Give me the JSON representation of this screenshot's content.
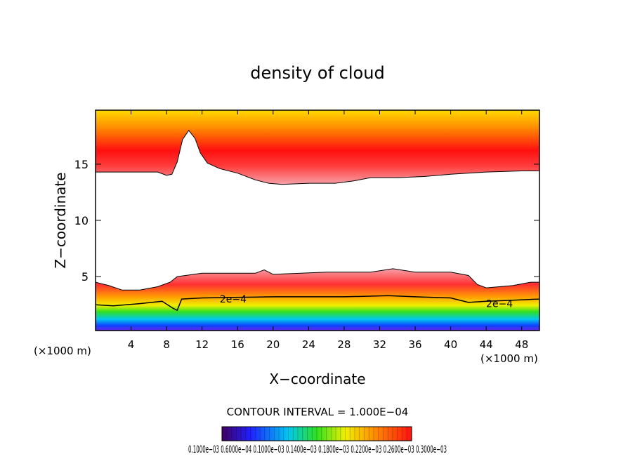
{
  "chart_data": {
    "type": "heatmap",
    "title": "density of cloud",
    "xlabel": "X−coordinate",
    "ylabel": "Z−coordinate",
    "x_unit_left": "(×1000 m)",
    "x_unit_right": "(×1000 m)",
    "xlim": [
      0,
      50
    ],
    "ylim": [
      0.2,
      19.8
    ],
    "x_ticks": [
      4,
      8,
      12,
      16,
      20,
      24,
      28,
      32,
      36,
      40,
      44,
      48
    ],
    "y_ticks": [
      5,
      10,
      15
    ],
    "contour_interval_text": "CONTOUR INTERVAL = 1.000E−04",
    "contour_labels": [
      {
        "text": "2e−4",
        "x": 15.5,
        "z": 3.0
      },
      {
        "text": "2e−4",
        "x": 45.5,
        "z": 2.6
      }
    ],
    "colorbar_label": "0.1000e−03 0.6000e−04 0.1000e−03 0.1400e−03 0.1800e−03 0.2200e−03 0.2600e−03 0.3000e−03",
    "colors": {
      "red": "#ff1010",
      "orange": "#ff8c00",
      "yellow": "#ffe000",
      "pink": "#f7a0a8",
      "green": "#30e020",
      "cyan": "#00c8f0",
      "blue": "#1040ff",
      "purple": "#8020e0"
    },
    "upper_layer": {
      "description_free": true,
      "base_z": [
        [
          0,
          14.3
        ],
        [
          7,
          14.3
        ],
        [
          8,
          14.0
        ],
        [
          8.6,
          14.1
        ],
        [
          9.2,
          15.2
        ],
        [
          9.8,
          17.2
        ],
        [
          10.5,
          18.0
        ],
        [
          11.2,
          17.3
        ],
        [
          11.8,
          16.0
        ],
        [
          12.6,
          15.1
        ],
        [
          14,
          14.6
        ],
        [
          16,
          14.2
        ],
        [
          18,
          13.6
        ],
        [
          19.5,
          13.3
        ],
        [
          21,
          13.2
        ],
        [
          24,
          13.3
        ],
        [
          27,
          13.3
        ],
        [
          29,
          13.5
        ],
        [
          31,
          13.8
        ],
        [
          34,
          13.8
        ],
        [
          37,
          13.9
        ],
        [
          40,
          14.1
        ],
        [
          44,
          14.3
        ],
        [
          48,
          14.4
        ],
        [
          50,
          14.4
        ]
      ],
      "top_z": 19.8
    },
    "lower_layer": {
      "top_z": [
        [
          0,
          4.5
        ],
        [
          1.5,
          4.2
        ],
        [
          3,
          3.8
        ],
        [
          5,
          3.8
        ],
        [
          7,
          4.1
        ],
        [
          8.4,
          4.5
        ],
        [
          9.2,
          5.0
        ],
        [
          12,
          5.3
        ],
        [
          18,
          5.3
        ],
        [
          19,
          5.6
        ],
        [
          20,
          5.2
        ],
        [
          26,
          5.4
        ],
        [
          31,
          5.4
        ],
        [
          33.5,
          5.7
        ],
        [
          36,
          5.4
        ],
        [
          40,
          5.4
        ],
        [
          42,
          5.1
        ],
        [
          43,
          4.3
        ],
        [
          44,
          4.0
        ],
        [
          47,
          4.2
        ],
        [
          49,
          4.5
        ],
        [
          50,
          4.5
        ]
      ],
      "contour_2e4_z": [
        [
          0,
          2.5
        ],
        [
          2,
          2.4
        ],
        [
          5,
          2.6
        ],
        [
          7.5,
          2.8
        ],
        [
          8.7,
          2.2
        ],
        [
          9.2,
          2.0
        ],
        [
          9.7,
          3.0
        ],
        [
          12,
          3.1
        ],
        [
          20,
          3.2
        ],
        [
          28,
          3.2
        ],
        [
          33,
          3.3
        ],
        [
          36,
          3.2
        ],
        [
          40,
          3.1
        ],
        [
          42,
          2.7
        ],
        [
          44,
          2.8
        ],
        [
          47,
          2.9
        ],
        [
          50,
          3.0
        ]
      ],
      "bottom_z": 0.2
    }
  }
}
